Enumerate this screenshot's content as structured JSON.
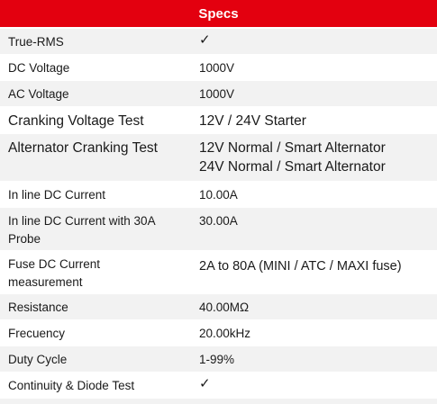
{
  "header": {
    "title": "Specs"
  },
  "rows": [
    {
      "label": "True-RMS",
      "value": "✓"
    },
    {
      "label": "DC Voltage",
      "value": "1000V"
    },
    {
      "label": "AC Voltage",
      "value": "1000V"
    },
    {
      "label": "Cranking Voltage Test",
      "value": "12V / 24V Starter"
    },
    {
      "label": "Alternator Cranking Test",
      "value": "12V Normal / Smart Alternator",
      "value2": "24V Normal / Smart Alternator"
    },
    {
      "label": "In line DC Current",
      "value": "10.00A"
    },
    {
      "label": "In line DC Current with 30A",
      "label2": "Probe",
      "value": "30.00A"
    },
    {
      "label": "Fuse DC Current",
      "label2": "measurement",
      "value": "2A to 80A (MINI / ATC / MAXI fuse)"
    },
    {
      "label": "Resistance",
      "value": "40.00MΩ"
    },
    {
      "label": "Frecuency",
      "value": "20.00kHz"
    },
    {
      "label": "Duty Cycle",
      "value": "1-99%"
    },
    {
      "label": "Continuity & Diode Test",
      "value": "✓"
    }
  ],
  "colors": {
    "header_bg": "#e3000f",
    "stripe": "#f2f2f2"
  }
}
